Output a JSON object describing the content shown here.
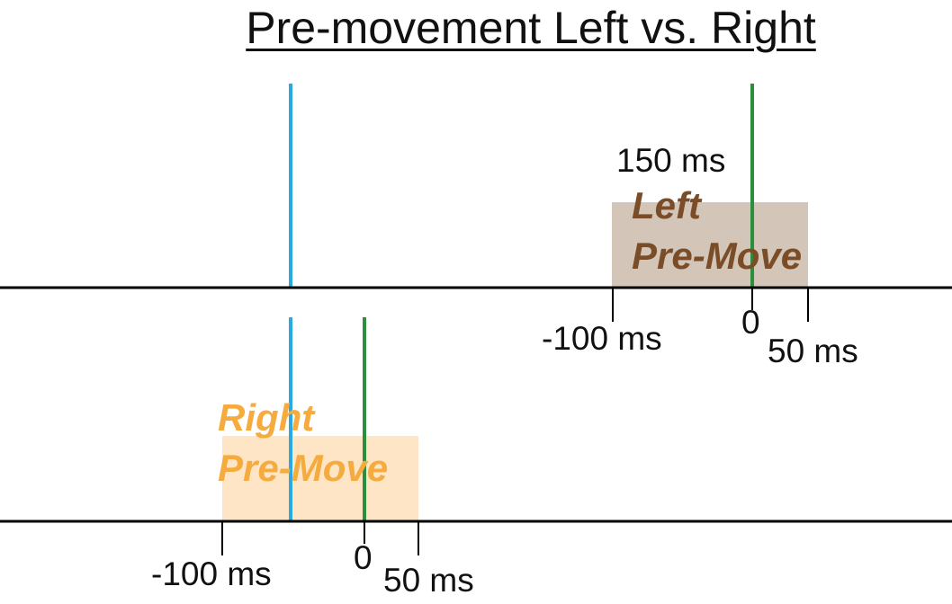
{
  "title": "Pre-movement Left vs. Right",
  "colors": {
    "left_window_fill": "#d3c6b8",
    "left_window_text": "#7a4d28",
    "right_window_fill": "#fde5c5",
    "right_window_text": "#f6ab3f",
    "cyan_marker": "#29aae1",
    "green_marker": "#2b8f3c",
    "axis": "#000000"
  },
  "top_panel": {
    "window_label_line1": "Left",
    "window_label_line2": "Pre-Move",
    "span_label": "150 ms",
    "tick_start": "-100 ms",
    "tick_zero": "0",
    "tick_end": "50 ms"
  },
  "bottom_panel": {
    "window_label_line1": "Right",
    "window_label_line2": "Pre-Move",
    "tick_start": "-100 ms",
    "tick_zero": "0",
    "tick_end": "50 ms"
  }
}
